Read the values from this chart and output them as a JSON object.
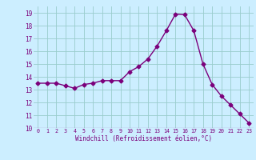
{
  "x": [
    0,
    1,
    2,
    3,
    4,
    5,
    6,
    7,
    8,
    9,
    10,
    11,
    12,
    13,
    14,
    15,
    16,
    17,
    18,
    19,
    20,
    21,
    22,
    23
  ],
  "y": [
    13.5,
    13.5,
    13.5,
    13.3,
    13.1,
    13.4,
    13.5,
    13.7,
    13.7,
    13.7,
    14.4,
    14.8,
    15.4,
    16.4,
    17.6,
    18.9,
    18.85,
    17.6,
    15.0,
    13.4,
    12.5,
    11.8,
    11.1,
    10.4
  ],
  "ylim": [
    10,
    19.5
  ],
  "yticks": [
    10,
    11,
    12,
    13,
    14,
    15,
    16,
    17,
    18,
    19
  ],
  "xtick_labels": [
    "0",
    "1",
    "2",
    "3",
    "4",
    "5",
    "6",
    "7",
    "8",
    "9",
    "10",
    "11",
    "12",
    "13",
    "14",
    "15",
    "16",
    "17",
    "18",
    "19",
    "20",
    "21",
    "22",
    "23"
  ],
  "xlabel": "Windchill (Refroidissement éolien,°C)",
  "line_color": "#7B007B",
  "marker": "D",
  "marker_size": 2.5,
  "bg_color": "#cceeff",
  "grid_color": "#99cccc",
  "title": ""
}
